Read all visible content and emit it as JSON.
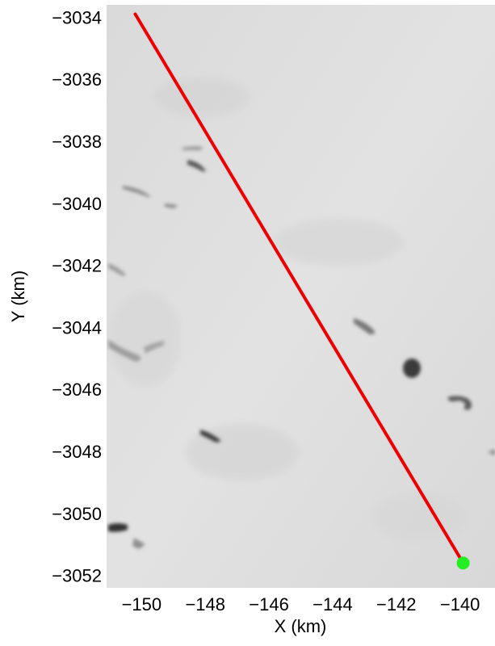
{
  "chart_data": {
    "type": "line",
    "xlabel": "X (km)",
    "ylabel": "Y (km)",
    "xlim": [
      -151.1,
      -138.9
    ],
    "ylim": [
      -3052.4,
      -3033.6
    ],
    "xticks": [
      -150,
      -148,
      -146,
      -144,
      -142,
      -140
    ],
    "yticks": [
      -3034,
      -3036,
      -3038,
      -3040,
      -3042,
      -3044,
      -3046,
      -3048,
      -3050,
      -3052
    ],
    "xtick_labels": [
      "−150",
      "−148",
      "−146",
      "−144",
      "−142",
      "−140"
    ],
    "ytick_labels": [
      "−3034",
      "−3036",
      "−3038",
      "−3040",
      "−3042",
      "−3044",
      "−3046",
      "−3048",
      "−3050",
      "−3052"
    ],
    "grid": false,
    "background": "grayscale satellite image",
    "series": [
      {
        "type": "line",
        "color": "#ee0000",
        "x": [
          -150.2,
          -139.9
        ],
        "y": [
          -3033.9,
          -3051.6
        ]
      },
      {
        "type": "point",
        "color": "#22ee22",
        "x": [
          -139.9
        ],
        "y": [
          -3051.6
        ]
      }
    ]
  }
}
